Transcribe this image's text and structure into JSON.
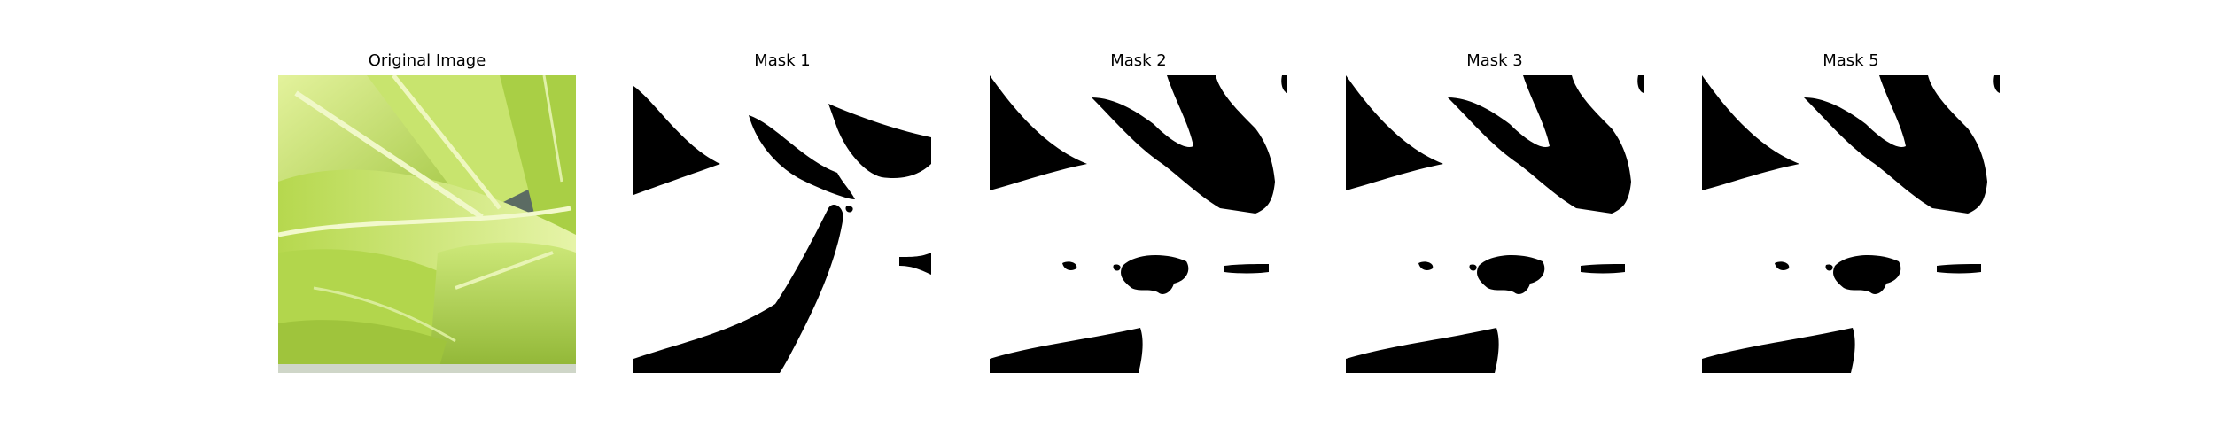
{
  "panels": [
    {
      "title": "Original Image",
      "kind": "photo"
    },
    {
      "title": "Mask 1",
      "kind": "mask"
    },
    {
      "title": "Mask 2",
      "kind": "mask"
    },
    {
      "title": "Mask 3",
      "kind": "mask"
    },
    {
      "title": "Mask 5",
      "kind": "mask"
    }
  ],
  "colors": {
    "mask_foreground": "#000000",
    "mask_background": "#ffffff",
    "leaf_light": "#d6ec8c",
    "leaf_mid": "#b4d94a",
    "leaf_dark": "#7aa22a",
    "background_gray": "#5a6a62"
  }
}
